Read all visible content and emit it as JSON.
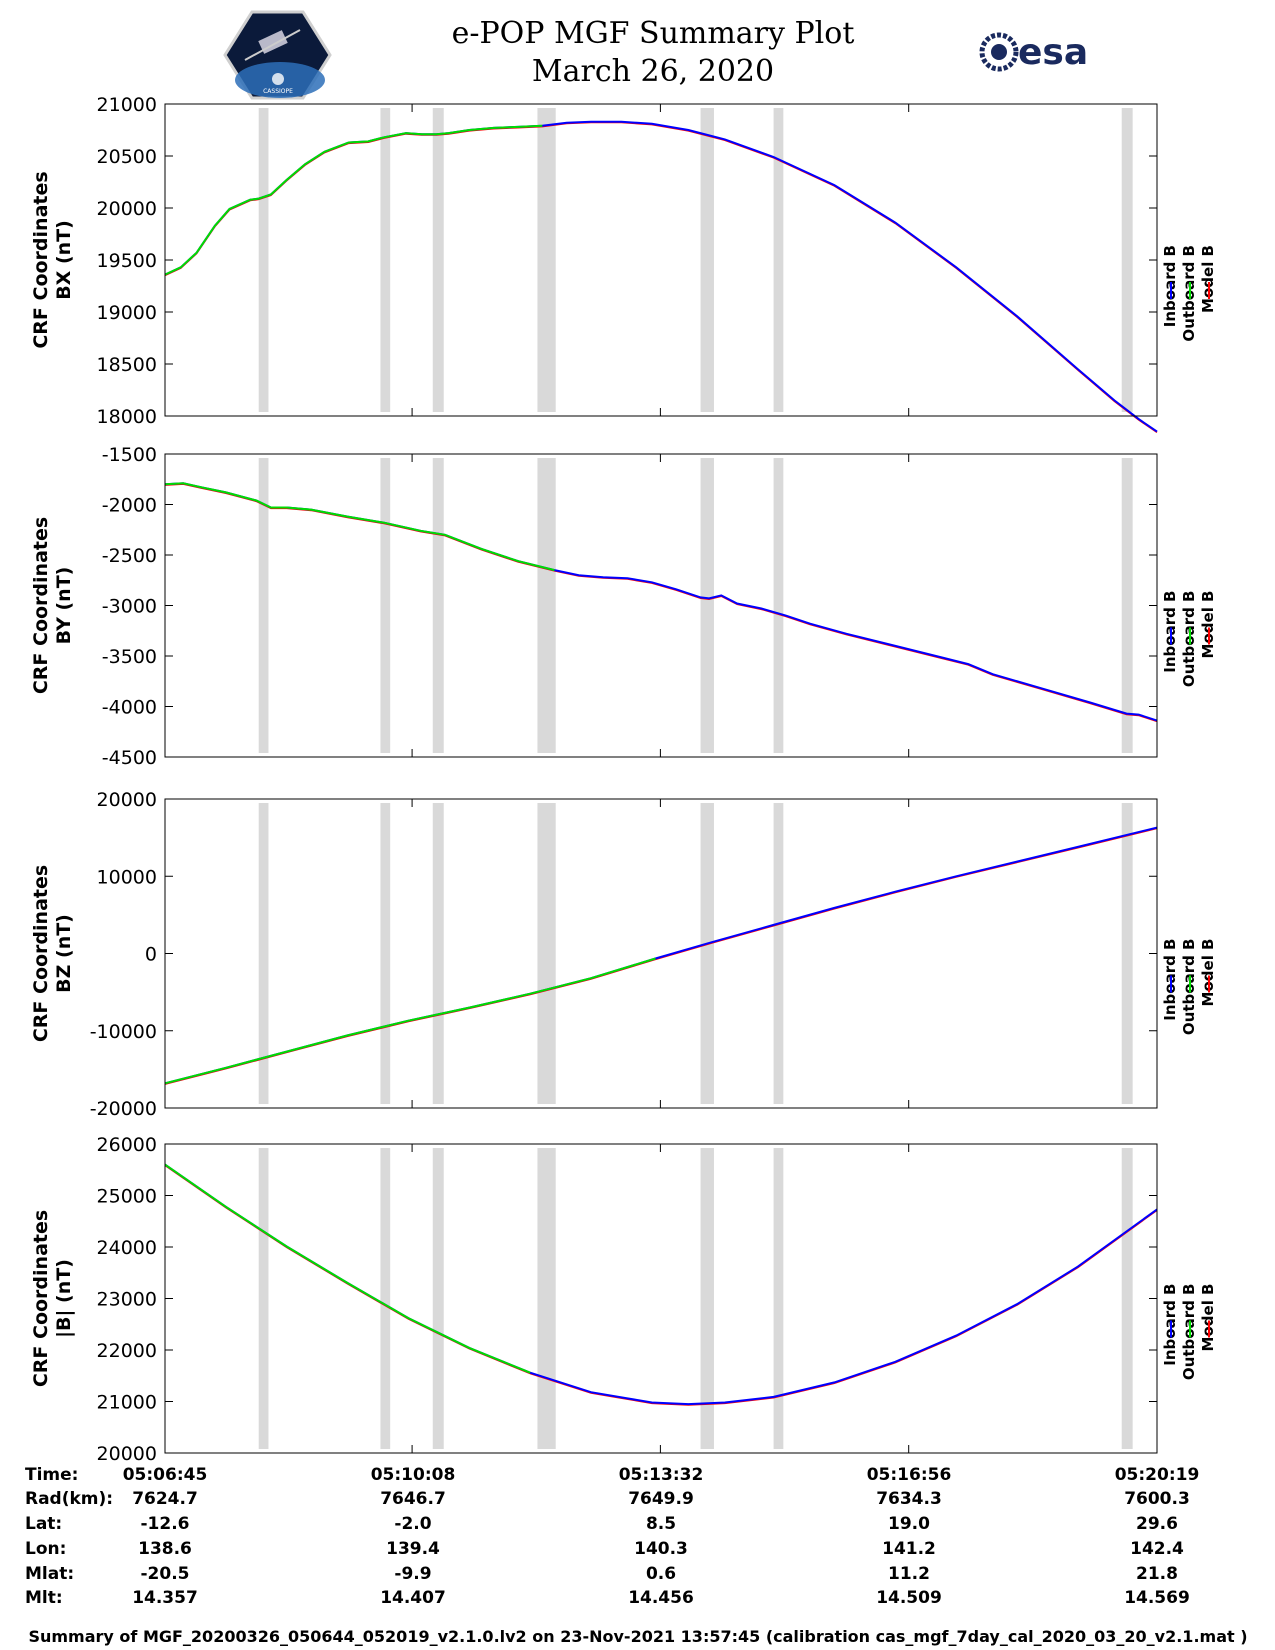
{
  "header": {
    "title_line1": "e-POP MGF Summary Plot",
    "title_line2": "March 26, 2020",
    "logo_left_text": "CASSIOPE",
    "logo_right_text": "esa"
  },
  "colors": {
    "inboard": "#0000ff",
    "outboard": "#00dd00",
    "model": "#ff0000",
    "gap_band": "#d9d9d9"
  },
  "chart_data": [
    {
      "type": "line",
      "ylabel_line1": "CRF Coordinates",
      "ylabel_line2": "BX (nT)",
      "ylim": [
        18000,
        21000
      ],
      "yticks": [
        18000,
        18500,
        19000,
        19500,
        20000,
        20500,
        21000
      ],
      "xlim": [
        0,
        815
      ],
      "x_tick_positions": [
        0,
        203,
        407,
        611,
        815
      ],
      "legend": [
        "Inboard B",
        "Outboard B",
        "Model B"
      ],
      "gap_bands": [
        [
          77,
          85
        ],
        [
          177,
          185
        ],
        [
          220,
          229
        ],
        [
          306,
          321
        ],
        [
          440,
          451
        ],
        [
          500,
          508
        ],
        [
          786,
          795
        ]
      ],
      "outboard_until_x": 320,
      "x": [
        0,
        13,
        26,
        41,
        53,
        70,
        77,
        87,
        100,
        115,
        131,
        151,
        167,
        180,
        198,
        211,
        223,
        233,
        250,
        270,
        290,
        310,
        330,
        350,
        375,
        400,
        430,
        460,
        500,
        550,
        600,
        650,
        700,
        750,
        780,
        800,
        815
      ],
      "values": [
        19360,
        19430,
        19570,
        19830,
        19990,
        20080,
        20090,
        20130,
        20270,
        20420,
        20540,
        20630,
        20640,
        20680,
        20720,
        20710,
        20710,
        20720,
        20750,
        20770,
        20780,
        20790,
        20820,
        20830,
        20830,
        20810,
        20750,
        20660,
        20490,
        20220,
        19860,
        19430,
        18960,
        18450,
        18150,
        17970,
        17850
      ]
    },
    {
      "type": "line",
      "ylabel_line1": "CRF Coordinates",
      "ylabel_line2": "BY (nT)",
      "ylim": [
        -4500,
        -1500
      ],
      "yticks": [
        -4500,
        -4000,
        -3500,
        -3000,
        -2500,
        -2000,
        -1500
      ],
      "xlim": [
        0,
        815
      ],
      "x_tick_positions": [
        0,
        203,
        407,
        611,
        815
      ],
      "legend": [
        "Inboard B",
        "Outboard B",
        "Model B"
      ],
      "gap_bands": [
        [
          77,
          85
        ],
        [
          177,
          185
        ],
        [
          220,
          229
        ],
        [
          306,
          321
        ],
        [
          440,
          451
        ],
        [
          500,
          508
        ],
        [
          786,
          795
        ]
      ],
      "outboard_until_x": 320,
      "x": [
        0,
        15,
        30,
        50,
        75,
        87,
        100,
        120,
        150,
        180,
        210,
        230,
        260,
        290,
        320,
        340,
        360,
        380,
        400,
        420,
        440,
        447,
        457,
        470,
        490,
        510,
        530,
        560,
        600,
        640,
        660,
        680,
        720,
        760,
        790,
        800,
        815
      ],
      "values": [
        -1800,
        -1790,
        -1830,
        -1880,
        -1960,
        -2030,
        -2030,
        -2050,
        -2120,
        -2180,
        -2260,
        -2300,
        -2440,
        -2560,
        -2650,
        -2700,
        -2720,
        -2730,
        -2770,
        -2840,
        -2920,
        -2930,
        -2900,
        -2980,
        -3030,
        -3100,
        -3180,
        -3280,
        -3400,
        -3520,
        -3580,
        -3680,
        -3820,
        -3960,
        -4070,
        -4080,
        -4140
      ]
    },
    {
      "type": "line",
      "ylabel_line1": "CRF Coordinates",
      "ylabel_line2": "BZ (nT)",
      "ylim": [
        -20000,
        20000
      ],
      "yticks": [
        -20000,
        -10000,
        0,
        10000,
        20000
      ],
      "xlim": [
        0,
        815
      ],
      "x_tick_positions": [
        0,
        203,
        407,
        611,
        815
      ],
      "legend": [
        "Inboard B",
        "Outboard B",
        "Model B"
      ],
      "gap_bands": [
        [
          77,
          85
        ],
        [
          177,
          185
        ],
        [
          220,
          229
        ],
        [
          306,
          321
        ],
        [
          440,
          451
        ],
        [
          500,
          508
        ],
        [
          786,
          795
        ]
      ],
      "outboard_until_x": 403,
      "x": [
        0,
        50,
        100,
        150,
        200,
        250,
        300,
        350,
        403,
        450,
        500,
        550,
        600,
        650,
        700,
        750,
        815
      ],
      "values": [
        -16800,
        -14800,
        -12700,
        -10600,
        -8700,
        -7000,
        -5200,
        -3200,
        -650,
        1500,
        3700,
        5900,
        8000,
        10000,
        11900,
        13800,
        16300
      ]
    },
    {
      "type": "line",
      "ylabel_line1": "CRF Coordinates",
      "ylabel_line2": "|B| (nT)",
      "ylim": [
        20000,
        26000
      ],
      "yticks": [
        20000,
        21000,
        22000,
        23000,
        24000,
        25000,
        26000
      ],
      "xlim": [
        0,
        815
      ],
      "x_tick_positions": [
        0,
        203,
        407,
        611,
        815
      ],
      "legend": [
        "Inboard B",
        "Outboard B",
        "Model B"
      ],
      "gap_bands": [
        [
          77,
          85
        ],
        [
          177,
          185
        ],
        [
          220,
          229
        ],
        [
          306,
          321
        ],
        [
          440,
          451
        ],
        [
          500,
          508
        ],
        [
          786,
          795
        ]
      ],
      "outboard_until_x": 330,
      "x": [
        0,
        50,
        100,
        150,
        200,
        250,
        300,
        350,
        400,
        430,
        460,
        500,
        550,
        600,
        650,
        700,
        750,
        815
      ],
      "values": [
        25600,
        24780,
        24010,
        23300,
        22620,
        22040,
        21560,
        21180,
        20980,
        20950,
        20980,
        21090,
        21370,
        21770,
        22280,
        22890,
        23620,
        24730
      ]
    }
  ],
  "ephemeris": {
    "labels": [
      "Time:",
      "Rad(km):",
      "Lat:",
      "Lon:",
      "Mlat:",
      "Mlt:"
    ],
    "columns": [
      [
        "05:06:45",
        "7624.7",
        "-12.6",
        "138.6",
        "-20.5",
        "14.357"
      ],
      [
        "05:10:08",
        "7646.7",
        "-2.0",
        "139.4",
        "-9.9",
        "14.407"
      ],
      [
        "05:13:32",
        "7649.9",
        "8.5",
        "140.3",
        "0.6",
        "14.456"
      ],
      [
        "05:16:56",
        "7634.3",
        "19.0",
        "141.2",
        "11.2",
        "14.509"
      ],
      [
        "05:20:19",
        "7600.3",
        "29.6",
        "142.4",
        "21.8",
        "14.569"
      ]
    ]
  },
  "footer": "Summary of MGF_20200326_050644_052019_v2.1.0.lv2 on 23-Nov-2021 13:57:45 (calibration cas_mgf_7day_cal_2020_03_20_v2.1.mat )"
}
